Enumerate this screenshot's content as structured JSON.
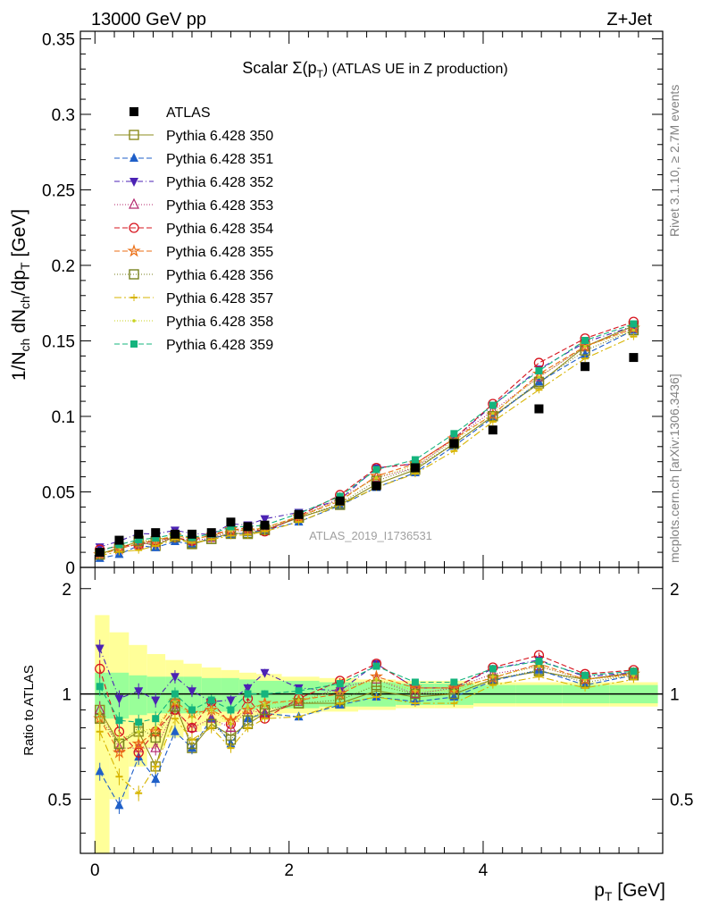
{
  "header": {
    "left": "13000 GeV pp",
    "right": "Z+Jet"
  },
  "side_labels": {
    "rivet": "Rivet 3.1.10, ≥ 2.7M events",
    "mcplots": "mcplots.cern.ch [arXiv:1306.3436]"
  },
  "chart_data": {
    "type": "scatter",
    "title_main": "Scalar Σ(p",
    "title_sub": "T",
    "title_tail": ") (ATLAS UE in Z production)",
    "watermark": "ATLAS_2019_I1736531",
    "ylabel_main": "1/N",
    "ylabel_full": "1/N_ch dN_ch/dp_T [GeV]",
    "ratio_ylabel": "Ratio to ATLAS",
    "xlabel_main": "p",
    "xlabel_sub": "T",
    "xlabel_unit": " [GeV]",
    "xlim": [
      -0.15,
      5.85
    ],
    "ylim": [
      0,
      0.355
    ],
    "ratio_ylim": [
      0.35,
      2.3
    ],
    "x_ticks": [
      "0",
      "2",
      "4"
    ],
    "y_ticks": [
      "0",
      "0.05",
      "0.1",
      "0.15",
      "0.2",
      "0.25",
      "0.3",
      "0.35"
    ],
    "ratio_ticks": [
      "0.5",
      "1",
      "2"
    ],
    "x": [
      0.05,
      0.25,
      0.45,
      0.625,
      0.825,
      1.0,
      1.2,
      1.4,
      1.575,
      1.75,
      2.1,
      2.525,
      2.9,
      3.3,
      3.7,
      4.1,
      4.575,
      5.05,
      5.55
    ],
    "data": {
      "name": "ATLAS",
      "values": [
        0.01,
        0.018,
        0.022,
        0.023,
        0.022,
        0.022,
        0.023,
        0.03,
        0.027,
        0.028,
        0.035,
        0.044,
        0.054,
        0.066,
        0.082,
        0.091,
        0.105,
        0.133,
        0.139
      ]
    },
    "ratio_band_inner": [
      0.15,
      0.15,
      0.13,
      0.12,
      0.12,
      0.12,
      0.11,
      0.11,
      0.1,
      0.09,
      0.09,
      0.08,
      0.08,
      0.07,
      0.07,
      0.06,
      0.06,
      0.06,
      0.06
    ],
    "ratio_band_outer": [
      0.68,
      0.5,
      0.38,
      0.3,
      0.25,
      0.22,
      0.19,
      0.17,
      0.15,
      0.14,
      0.12,
      0.11,
      0.1,
      0.09,
      0.09,
      0.08,
      0.08,
      0.08,
      0.08
    ],
    "series": [
      {
        "name": "Pythia 6.428 350",
        "color": "#8c8c1e",
        "marker": "square-open",
        "dash": "",
        "ratio": [
          0.9,
          0.72,
          0.78,
          0.62,
          0.94,
          0.7,
          0.82,
          0.76,
          0.82,
          0.88,
          0.94,
          0.94,
          1.02,
          0.98,
          1.0,
          1.1,
          1.16,
          1.1,
          1.15
        ]
      },
      {
        "name": "Pythia 6.428 351",
        "color": "#1f5fc8",
        "marker": "triangle-up",
        "dash": "6,3",
        "ratio": [
          0.6,
          0.48,
          0.66,
          0.57,
          0.78,
          0.7,
          0.85,
          0.72,
          0.85,
          0.88,
          0.86,
          0.93,
          0.98,
          0.95,
          0.98,
          1.09,
          1.17,
          1.06,
          1.13
        ]
      },
      {
        "name": "Pythia 6.428 352",
        "color": "#4b22b4",
        "marker": "triangle-down",
        "dash": "6,3,1,3",
        "ratio": [
          1.35,
          0.97,
          1.02,
          0.96,
          1.12,
          1.02,
          0.95,
          0.96,
          1.04,
          1.15,
          1.04,
          1.02,
          1.22,
          1.04,
          1.04,
          1.18,
          1.25,
          1.12,
          1.15
        ]
      },
      {
        "name": "Pythia 6.428 353",
        "color": "#b4286e",
        "marker": "triangle-open",
        "dash": "1,2",
        "ratio": [
          0.9,
          0.7,
          0.7,
          0.7,
          0.9,
          0.8,
          0.85,
          0.8,
          0.9,
          0.88,
          0.95,
          1.04,
          1.1,
          1.0,
          1.04,
          1.14,
          1.2,
          1.1,
          1.14
        ]
      },
      {
        "name": "Pythia 6.428 354",
        "color": "#d7141e",
        "marker": "circle-open",
        "dash": "6,3",
        "ratio": [
          1.18,
          0.78,
          0.68,
          0.78,
          0.9,
          0.8,
          0.95,
          0.82,
          0.97,
          0.85,
          0.97,
          1.09,
          1.22,
          1.04,
          1.04,
          1.19,
          1.29,
          1.14,
          1.17
        ]
      },
      {
        "name": "Pythia 6.428 355",
        "color": "#eb6e14",
        "marker": "star-open",
        "dash": "6,3",
        "ratio": [
          0.85,
          0.68,
          0.72,
          0.78,
          0.95,
          0.88,
          0.9,
          0.84,
          0.9,
          0.94,
          0.96,
          1.0,
          1.12,
          1.04,
          1.04,
          1.11,
          1.22,
          1.1,
          1.14
        ]
      },
      {
        "name": "Pythia 6.428 356",
        "color": "#78821e",
        "marker": "square-open",
        "dash": "1,2",
        "ratio": [
          0.85,
          0.72,
          0.8,
          0.75,
          0.92,
          0.72,
          0.82,
          0.74,
          0.84,
          0.9,
          0.94,
          0.96,
          1.06,
          1.0,
          1.0,
          1.1,
          1.17,
          1.08,
          1.13
        ]
      },
      {
        "name": "Pythia 6.428 357",
        "color": "#d7b400",
        "marker": "tick",
        "dash": "8,3,2,3",
        "ratio": [
          0.78,
          0.58,
          0.52,
          0.62,
          0.85,
          0.74,
          0.8,
          0.7,
          0.8,
          0.85,
          0.86,
          0.94,
          0.98,
          0.94,
          0.94,
          1.06,
          1.12,
          1.04,
          1.1
        ]
      },
      {
        "name": "Pythia 6.428 358",
        "color": "#c8d21e",
        "marker": "dot",
        "dash": "1,2",
        "ratio": [
          0.88,
          0.74,
          0.78,
          0.8,
          0.95,
          0.86,
          0.9,
          0.82,
          0.92,
          0.93,
          0.96,
          1.02,
          1.1,
          1.02,
          1.02,
          1.12,
          1.2,
          1.1,
          1.13
        ]
      },
      {
        "name": "Pythia 6.428 359",
        "color": "#14b47d",
        "marker": "square",
        "dash": "6,3",
        "ratio": [
          1.05,
          0.84,
          0.83,
          0.85,
          1.0,
          0.9,
          0.96,
          0.9,
          1.0,
          1.0,
          1.02,
          1.07,
          1.2,
          1.08,
          1.08,
          1.18,
          1.24,
          1.13,
          1.16
        ]
      }
    ]
  }
}
